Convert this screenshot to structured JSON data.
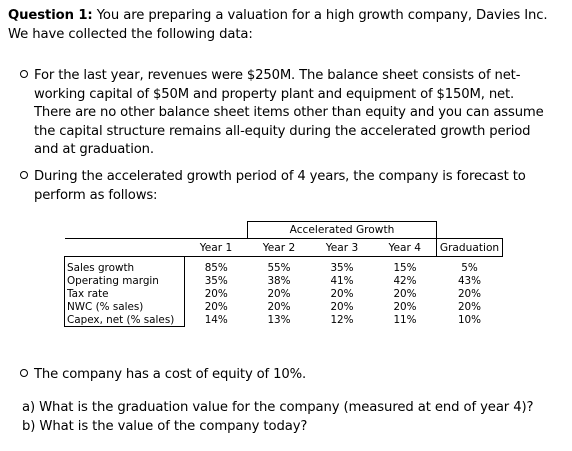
{
  "question": {
    "label": "Question 1:",
    "intro_line1": "You are preparing a valuation for a high growth company, Davies Inc.",
    "intro_line2": "We have collected the following data:"
  },
  "bullets": [
    {
      "lines": [
        "For the last year, revenues were $250M. The balance sheet consists of net-",
        "working capital of $50M and property plant and equipment of $150M, net.",
        "There are no other balance sheet items other than equity and you can assume",
        "the capital structure remains all-equity during the accelerated growth period",
        "and at graduation."
      ]
    },
    {
      "lines": [
        "During the accelerated growth period of 4 years, the company is forecast to",
        "perform as follows:"
      ]
    }
  ],
  "table": {
    "group_header": "Accelerated Growth",
    "columns": [
      "Year 1",
      "Year 2",
      "Year 3",
      "Year 4",
      "Graduation"
    ],
    "rows": [
      {
        "label": "Sales growth",
        "values": [
          "85%",
          "55%",
          "35%",
          "15%",
          "5%"
        ]
      },
      {
        "label": "Operating margin",
        "values": [
          "35%",
          "38%",
          "41%",
          "42%",
          "43%"
        ]
      },
      {
        "label": "Tax rate",
        "values": [
          "20%",
          "20%",
          "20%",
          "20%",
          "20%"
        ]
      },
      {
        "label": "NWC (% sales)",
        "values": [
          "20%",
          "20%",
          "20%",
          "20%",
          "20%"
        ]
      },
      {
        "label": "Capex, net (% sales)",
        "values": [
          "14%",
          "13%",
          "12%",
          "11%",
          "10%"
        ]
      }
    ]
  },
  "bullet3": "The company has a cost of equity of 10%.",
  "parts": [
    {
      "text": "a) What is the graduation value for the company (measured at end of year 4)?"
    },
    {
      "text": "b) What is the value of the company today?"
    }
  ]
}
